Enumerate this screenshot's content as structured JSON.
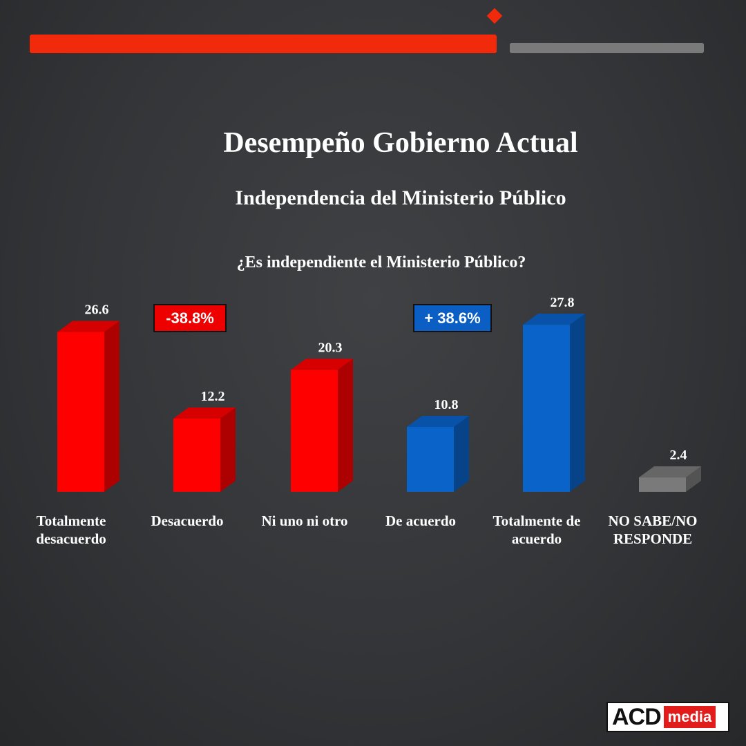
{
  "header": {
    "title": "Desempeño Gobierno Actual",
    "subtitle": "Independencia del Ministerio Público",
    "question": "¿Es independiente el Ministerio Público?"
  },
  "badges": {
    "negative": "-38.8%",
    "positive": "+ 38.6%"
  },
  "logo": {
    "main": "ACD",
    "sub": "media"
  },
  "colors": {
    "negative": "#ff0000",
    "positive": "#0a63c9",
    "neutral": "#7a7a7a",
    "accent": "#f22a0c"
  },
  "chart_data": {
    "type": "bar",
    "title": "¿Es independiente el Ministerio Público?",
    "categories": [
      [
        "Totalmente",
        "desacuerdo"
      ],
      [
        "Desacuerdo"
      ],
      [
        "Ni uno ni otro"
      ],
      [
        "De acuerdo"
      ],
      [
        "Totalmente de",
        "acuerdo"
      ],
      [
        "NO SABE/NO",
        "RESPONDE"
      ]
    ],
    "values": [
      26.6,
      12.2,
      20.3,
      10.8,
      27.8,
      2.4
    ],
    "value_labels": [
      "26.6",
      "12.2",
      "20.3",
      "10.8",
      "27.8",
      "2.4"
    ],
    "bar_colors": [
      "#ff0000",
      "#ff0000",
      "#ff0000",
      "#0a63c9",
      "#0a63c9",
      "#7a7a7a"
    ],
    "ylim": [
      0,
      30
    ],
    "grid": false,
    "legend": "none"
  }
}
